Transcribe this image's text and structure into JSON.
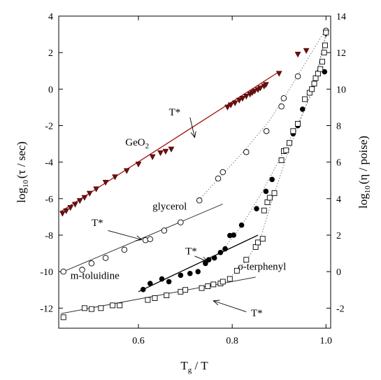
{
  "chart_data": {
    "type": "scatter",
    "xlabel_main": "T",
    "xlabel_sub": "g",
    "xlabel_rest": " / T",
    "ylabel_left_pre": "log",
    "ylabel_left_sub": "10",
    "ylabel_left_post": "(τ / sec)",
    "ylabel_right_pre": "log",
    "ylabel_right_sub": "10",
    "ylabel_right_post": "(η / poise)",
    "xlim": [
      0.43,
      1.01
    ],
    "ylim": [
      -13.1,
      4
    ],
    "ylim_right": [
      -3.1,
      14
    ],
    "xticks": [
      0.6,
      0.8,
      1.0
    ],
    "xtick_labels": [
      "0.6",
      "0.8",
      "1.0"
    ],
    "yticks_left": [
      -12,
      -10,
      -8,
      -6,
      -4,
      -2,
      0,
      2,
      4
    ],
    "ytick_labels_left": [
      "-12",
      "-10",
      "-8",
      "-6",
      "-4",
      "-2",
      "0",
      "2",
      "4"
    ],
    "yticks_right": [
      -2,
      0,
      2,
      4,
      6,
      8,
      10,
      12,
      14
    ],
    "ytick_labels_right": [
      "-2",
      "0",
      "2",
      "4",
      "6",
      "8",
      "10",
      "12",
      "14"
    ],
    "series": [
      {
        "name": "GeO2",
        "marker": "triangle-down",
        "color": "#6e0f0f",
        "points": [
          [
            0.438,
            -6.82
          ],
          [
            0.446,
            -6.68
          ],
          [
            0.455,
            -6.5
          ],
          [
            0.465,
            -6.32
          ],
          [
            0.475,
            -6.12
          ],
          [
            0.485,
            -5.95
          ],
          [
            0.496,
            -5.72
          ],
          [
            0.51,
            -5.48
          ],
          [
            0.53,
            -5.12
          ],
          [
            0.55,
            -4.82
          ],
          [
            0.575,
            -4.48
          ],
          [
            0.6,
            -4.12
          ],
          [
            0.63,
            -3.72
          ],
          [
            0.647,
            -3.5
          ],
          [
            0.658,
            -3.42
          ],
          [
            0.67,
            -3.3
          ],
          [
            0.79,
            -1.0
          ],
          [
            0.797,
            -0.88
          ],
          [
            0.806,
            -0.77
          ],
          [
            0.815,
            -0.62
          ],
          [
            0.822,
            -0.52
          ],
          [
            0.83,
            -0.4
          ],
          [
            0.838,
            -0.29
          ],
          [
            0.843,
            -0.2
          ],
          [
            0.848,
            -0.12
          ],
          [
            0.855,
            -0.04
          ],
          [
            0.86,
            0.05
          ],
          [
            0.868,
            0.15
          ],
          [
            0.872,
            0.24
          ],
          [
            0.9,
            0.85
          ],
          [
            0.94,
            1.9
          ],
          [
            0.958,
            2.1
          ],
          [
            1.0,
            3.0
          ]
        ]
      },
      {
        "name": "glycerol",
        "marker": "circle-open",
        "color": "#000000",
        "points": [
          [
            0.44,
            -10.0
          ],
          [
            0.48,
            -9.9
          ],
          [
            0.5,
            -9.55
          ],
          [
            0.53,
            -9.25
          ],
          [
            0.57,
            -8.8
          ],
          [
            0.615,
            -8.28
          ],
          [
            0.625,
            -8.22
          ],
          [
            0.655,
            -7.75
          ],
          [
            0.69,
            -7.3
          ],
          [
            0.73,
            -6.1
          ],
          [
            0.77,
            -4.9
          ],
          [
            0.78,
            -4.55
          ],
          [
            0.83,
            -3.45
          ],
          [
            0.873,
            -2.3
          ],
          [
            0.905,
            -0.95
          ],
          [
            0.91,
            -0.5
          ],
          [
            0.94,
            0.7
          ],
          [
            1.0,
            3.2
          ]
        ]
      },
      {
        "name": "m-toluidine",
        "marker": "circle-filled",
        "color": "#000000",
        "points": [
          [
            0.61,
            -10.98
          ],
          [
            0.625,
            -10.65
          ],
          [
            0.65,
            -10.4
          ],
          [
            0.665,
            -10.55
          ],
          [
            0.69,
            -10.2
          ],
          [
            0.71,
            -10.1
          ],
          [
            0.727,
            -10.0
          ],
          [
            0.743,
            -9.55
          ],
          [
            0.75,
            -9.35
          ],
          [
            0.762,
            -9.25
          ],
          [
            0.775,
            -8.95
          ],
          [
            0.785,
            -8.75
          ],
          [
            0.795,
            -8.02
          ],
          [
            0.803,
            -8.0
          ],
          [
            0.82,
            -7.45
          ],
          [
            0.852,
            -6.55
          ],
          [
            0.872,
            -5.6
          ],
          [
            0.885,
            -4.95
          ],
          [
            0.905,
            -3.9
          ],
          [
            0.93,
            -2.45
          ],
          [
            0.94,
            -2.0
          ],
          [
            0.95,
            -1.1
          ],
          [
            0.997,
            0.95
          ]
        ]
      },
      {
        "name": "o-terphenyl",
        "marker": "square-open",
        "color": "#000000",
        "points": [
          [
            0.44,
            -12.5
          ],
          [
            0.485,
            -12.0
          ],
          [
            0.5,
            -12.05
          ],
          [
            0.52,
            -12.0
          ],
          [
            0.545,
            -11.85
          ],
          [
            0.56,
            -11.85
          ],
          [
            0.62,
            -11.55
          ],
          [
            0.635,
            -11.45
          ],
          [
            0.66,
            -11.3
          ],
          [
            0.69,
            -11.1
          ],
          [
            0.7,
            -11.0
          ],
          [
            0.735,
            -10.9
          ],
          [
            0.748,
            -10.8
          ],
          [
            0.76,
            -10.7
          ],
          [
            0.775,
            -10.65
          ],
          [
            0.78,
            -10.55
          ],
          [
            0.795,
            -10.4
          ],
          [
            0.81,
            -9.95
          ],
          [
            0.83,
            -9.35
          ],
          [
            0.85,
            -8.65
          ],
          [
            0.855,
            -8.4
          ],
          [
            0.865,
            -8.2
          ],
          [
            0.868,
            -6.65
          ],
          [
            0.875,
            -6.2
          ],
          [
            0.88,
            -5.95
          ],
          [
            0.89,
            -5.7
          ],
          [
            0.905,
            -3.9
          ],
          [
            0.91,
            -3.4
          ],
          [
            0.915,
            -3.35
          ],
          [
            0.922,
            -2.95
          ],
          [
            0.93,
            -2.3
          ],
          [
            0.94,
            -1.9
          ],
          [
            0.955,
            -0.55
          ],
          [
            0.965,
            -0.2
          ],
          [
            0.97,
            0.0
          ],
          [
            0.975,
            0.3
          ],
          [
            0.978,
            0.6
          ],
          [
            0.983,
            0.85
          ],
          [
            0.988,
            1.1
          ],
          [
            0.992,
            1.5
          ],
          [
            0.996,
            2.0
          ],
          [
            0.998,
            2.4
          ],
          [
            1.0,
            3.1
          ]
        ]
      }
    ],
    "fit_lines": [
      {
        "id": "geo2-fit",
        "color": "#a3160f",
        "width": 1.3,
        "points": [
          [
            0.435,
            -6.7
          ],
          [
            0.9,
            0.95
          ]
        ]
      },
      {
        "id": "glycerol-fit",
        "color": "#333333",
        "width": 1.0,
        "points": [
          [
            0.44,
            -10.0
          ],
          [
            0.78,
            -6.3
          ]
        ]
      },
      {
        "id": "mtoluidine-fit",
        "color": "#000000",
        "width": 1.3,
        "points": [
          [
            0.6,
            -11.1
          ],
          [
            0.855,
            -8.0
          ]
        ]
      },
      {
        "id": "oterphenyl-fit",
        "color": "#333333",
        "width": 1.0,
        "points": [
          [
            0.435,
            -12.3
          ],
          [
            0.85,
            -10.3
          ]
        ]
      }
    ],
    "dotted_curves": [
      {
        "id": "glycerol-dotted",
        "points": [
          [
            0.725,
            -6.2
          ],
          [
            0.76,
            -5.2
          ],
          [
            0.8,
            -4.1
          ],
          [
            0.84,
            -2.95
          ],
          [
            0.88,
            -1.7
          ],
          [
            0.92,
            -0.1
          ],
          [
            0.96,
            1.6
          ],
          [
            1.0,
            3.3
          ]
        ]
      },
      {
        "id": "mtoluidine-dotted",
        "points": [
          [
            0.745,
            -9.5
          ],
          [
            0.78,
            -8.8
          ],
          [
            0.82,
            -7.5
          ],
          [
            0.86,
            -5.8
          ],
          [
            0.9,
            -3.9
          ],
          [
            0.94,
            -1.9
          ],
          [
            0.97,
            -0.2
          ],
          [
            1.0,
            2.9
          ]
        ]
      },
      {
        "id": "oterphenyl-dotted",
        "points": [
          [
            0.8,
            -10.2
          ],
          [
            0.83,
            -9.4
          ],
          [
            0.86,
            -8.2
          ],
          [
            0.88,
            -6.5
          ],
          [
            0.92,
            -3.4
          ],
          [
            0.95,
            -1.4
          ],
          [
            0.975,
            0.3
          ],
          [
            1.0,
            3.1
          ]
        ]
      }
    ],
    "annotations": [
      {
        "id": "geo2-label",
        "text": "GeO",
        "sub": "2",
        "color": "#a3160f",
        "x": 0.572,
        "y": -3.1
      },
      {
        "id": "glycerol-label",
        "text": "glycerol",
        "color": "#000000",
        "x": 0.63,
        "y": -6.6
      },
      {
        "id": "mtoluidine-label",
        "text": "m-toluidine",
        "color": "#000000",
        "x": 0.455,
        "y": -10.4
      },
      {
        "id": "oterphenyl-label",
        "text": "o-terphenyl",
        "color": "#000000",
        "x": 0.812,
        "y": -9.9
      },
      {
        "id": "tstar-geo2",
        "text": "T*",
        "color": "#000000",
        "x": 0.665,
        "y": -1.45
      },
      {
        "id": "tstar-glycerol",
        "text": "T*",
        "color": "#000000",
        "x": 0.5,
        "y": -7.5
      },
      {
        "id": "tstar-mtoluidine",
        "text": "T*",
        "color": "#000000",
        "x": 0.7,
        "y": -9.05
      },
      {
        "id": "tstar-oterphenyl",
        "text": "T*",
        "color": "#000000",
        "x": 0.84,
        "y": -12.45
      }
    ],
    "arrows": [
      {
        "id": "arrow-geo2",
        "from": [
          0.71,
          -1.55
        ],
        "to": [
          0.72,
          -2.65
        ]
      },
      {
        "id": "arrow-glycerol",
        "from": [
          0.535,
          -7.75
        ],
        "to": [
          0.607,
          -8.25
        ]
      },
      {
        "id": "arrow-mtoluidine",
        "from": [
          0.72,
          -9.15
        ],
        "to": [
          0.748,
          -9.45
        ]
      },
      {
        "id": "arrow-oterphenyl",
        "from": [
          0.83,
          -12.2
        ],
        "to": [
          0.76,
          -11.6
        ]
      }
    ]
  }
}
